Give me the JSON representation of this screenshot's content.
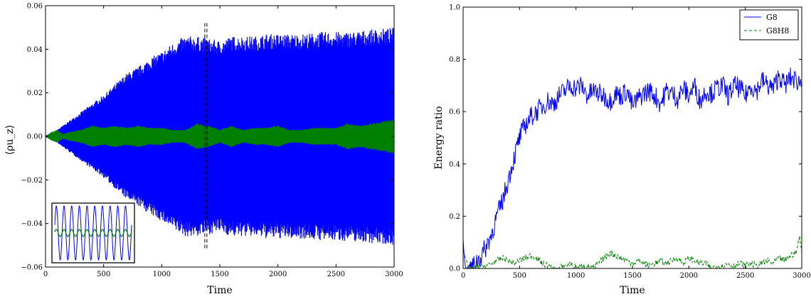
{
  "chart_data": [
    {
      "type": "area",
      "xlabel": "Time",
      "ylabel": "⟨ρu_z⟩",
      "xlim": [
        0,
        3000
      ],
      "ylim": [
        -0.06,
        0.06
      ],
      "xticks": [
        "0",
        "500",
        "1000",
        "1500",
        "2000",
        "2500",
        "3000"
      ],
      "yticks": [
        "−0.06",
        "−0.04",
        "−0.02",
        "0.00",
        "0.02",
        "0.04",
        "0.06"
      ],
      "grid": false,
      "colors": {
        "outer": "#0000ff",
        "inner": "#007f00",
        "marker": "#000000"
      },
      "series": [
        {
          "color": "#0000ff",
          "x": [
            0,
            50,
            100,
            200,
            300,
            400,
            500,
            600,
            700,
            800,
            900,
            1000,
            1100,
            1200,
            1300,
            1400,
            1500,
            1600,
            1700,
            1800,
            1900,
            2000,
            2200,
            2400,
            2600,
            2800,
            3000
          ],
          "envelope": [
            0.0,
            0.001,
            0.003,
            0.007,
            0.011,
            0.015,
            0.019,
            0.024,
            0.029,
            0.032,
            0.036,
            0.039,
            0.043,
            0.046,
            0.046,
            0.045,
            0.044,
            0.046,
            0.046,
            0.046,
            0.047,
            0.047,
            0.047,
            0.048,
            0.048,
            0.049,
            0.05
          ]
        },
        {
          "color": "#007f00",
          "x": [
            0,
            50,
            100,
            150,
            200,
            300,
            400,
            500,
            600,
            700,
            800,
            900,
            1000,
            1100,
            1200,
            1300,
            1400,
            1500,
            1600,
            1700,
            1800,
            1900,
            2000,
            2100,
            2200,
            2300,
            2400,
            2500,
            2600,
            2700,
            2800,
            2900,
            3000
          ],
          "envelope": [
            0.0,
            0.002,
            0.003,
            0.001,
            0.002,
            0.003,
            0.005,
            0.004,
            0.005,
            0.004,
            0.005,
            0.004,
            0.004,
            0.003,
            0.003,
            0.006,
            0.005,
            0.003,
            0.005,
            0.003,
            0.004,
            0.004,
            0.005,
            0.003,
            0.003,
            0.004,
            0.004,
            0.004,
            0.006,
            0.005,
            0.006,
            0.007,
            0.008
          ]
        }
      ],
      "marker_x": 1380,
      "inset": {
        "description_series": [
          "#0000ff",
          "#007f00"
        ],
        "cycles": 10
      }
    },
    {
      "type": "line",
      "xlabel": "Time",
      "ylabel": "Energy ratio",
      "xlim": [
        0,
        3000
      ],
      "ylim": [
        0.0,
        1.0
      ],
      "xticks": [
        "0",
        "500",
        "1000",
        "1500",
        "2000",
        "2500",
        "3000"
      ],
      "yticks": [
        "0.0",
        "0.2",
        "0.4",
        "0.6",
        "0.8",
        "1.0"
      ],
      "grid": false,
      "legend": {
        "placement": "top-right"
      },
      "series": [
        {
          "name": "G8",
          "color": "#0000ff",
          "style": "solid",
          "x": [
            0,
            20,
            40,
            60,
            80,
            100,
            150,
            200,
            250,
            300,
            350,
            400,
            450,
            500,
            550,
            600,
            650,
            700,
            750,
            800,
            850,
            900,
            950,
            1000,
            1050,
            1100,
            1150,
            1200,
            1250,
            1300,
            1350,
            1400,
            1450,
            1500,
            1550,
            1600,
            1650,
            1700,
            1750,
            1800,
            1850,
            1900,
            1950,
            2000,
            2050,
            2100,
            2150,
            2200,
            2250,
            2300,
            2350,
            2400,
            2450,
            2500,
            2550,
            2600,
            2650,
            2700,
            2750,
            2800,
            2850,
            2900,
            2950,
            3000
          ],
          "y": [
            0.11,
            0.0,
            0.0,
            0.01,
            0.0,
            0.02,
            0.04,
            0.08,
            0.13,
            0.2,
            0.26,
            0.34,
            0.42,
            0.5,
            0.55,
            0.58,
            0.6,
            0.62,
            0.64,
            0.63,
            0.66,
            0.68,
            0.7,
            0.69,
            0.7,
            0.66,
            0.68,
            0.67,
            0.66,
            0.64,
            0.67,
            0.66,
            0.68,
            0.62,
            0.65,
            0.67,
            0.68,
            0.66,
            0.63,
            0.68,
            0.67,
            0.65,
            0.69,
            0.66,
            0.7,
            0.64,
            0.68,
            0.67,
            0.69,
            0.7,
            0.66,
            0.7,
            0.69,
            0.66,
            0.7,
            0.68,
            0.72,
            0.7,
            0.69,
            0.74,
            0.7,
            0.73,
            0.72,
            0.71
          ]
        },
        {
          "name": "G8H8",
          "color": "#007f00",
          "style": "dashed",
          "x": [
            0,
            50,
            100,
            150,
            200,
            250,
            300,
            350,
            400,
            450,
            500,
            550,
            600,
            650,
            700,
            750,
            800,
            850,
            900,
            950,
            1000,
            1050,
            1100,
            1150,
            1200,
            1250,
            1300,
            1350,
            1400,
            1450,
            1500,
            1550,
            1600,
            1650,
            1700,
            1750,
            1800,
            1850,
            1900,
            1950,
            2000,
            2050,
            2100,
            2150,
            2200,
            2250,
            2300,
            2350,
            2400,
            2450,
            2500,
            2550,
            2600,
            2650,
            2700,
            2750,
            2800,
            2850,
            2900,
            2950,
            2980,
            3000
          ],
          "y": [
            0.07,
            0.0,
            0.0,
            0.005,
            0.01,
            0.02,
            0.03,
            0.04,
            0.03,
            0.02,
            0.03,
            0.04,
            0.05,
            0.04,
            0.02,
            0.01,
            0.0,
            0.0,
            0.01,
            0.02,
            0.0,
            0.01,
            0.01,
            0.0,
            0.02,
            0.04,
            0.06,
            0.05,
            0.04,
            0.03,
            0.02,
            0.03,
            0.02,
            0.01,
            0.02,
            0.03,
            0.02,
            0.03,
            0.04,
            0.02,
            0.04,
            0.03,
            0.02,
            0.02,
            0.0,
            0.01,
            0.01,
            0.02,
            0.01,
            0.02,
            0.01,
            0.02,
            0.01,
            0.02,
            0.03,
            0.02,
            0.04,
            0.03,
            0.05,
            0.06,
            0.12,
            0.07
          ]
        }
      ]
    }
  ]
}
